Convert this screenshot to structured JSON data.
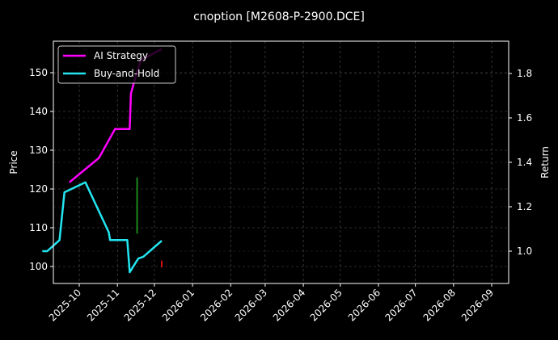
{
  "chart_data": {
    "type": "line",
    "title": "cnoption [M2608-P-2900.DCE]",
    "xlabel": "",
    "ylabel_left": "Price",
    "ylabel_right": "Return",
    "x_ticks": [
      "2025-10",
      "2025-11",
      "2025-12",
      "2026-01",
      "2026-02",
      "2026-03",
      "2026-04",
      "2026-05",
      "2026-06",
      "2026-07",
      "2026-08",
      "2026-09"
    ],
    "y_left_ticks": [
      100,
      110,
      120,
      130,
      140,
      150
    ],
    "y_left_range": [
      95.7,
      158.2
    ],
    "y_right_ticks": [
      1.0,
      1.2,
      1.4,
      1.6,
      1.8
    ],
    "y_right_range": [
      0.85,
      1.94
    ],
    "grid": true,
    "legend_position": "upper left",
    "legend": [
      "AI Strategy",
      "Buy-and-Hold"
    ],
    "series": [
      {
        "name": "AI Strategy",
        "axis": "right",
        "color": "#ff00ff",
        "x": [
          "2025-09-23",
          "2025-10-17",
          "2025-10-30",
          "2025-11-11",
          "2025-11-12",
          "2025-11-15",
          "2025-11-20",
          "2025-12-07"
        ],
        "values": [
          1.31,
          1.42,
          1.55,
          1.55,
          1.71,
          1.77,
          1.86,
          1.91
        ]
      },
      {
        "name": "Buy-and-Hold",
        "axis": "right",
        "color": "#22e5f0",
        "x": [
          "2025-09-01",
          "2025-09-05",
          "2025-09-15",
          "2025-09-19",
          "2025-10-06",
          "2025-10-25",
          "2025-10-26",
          "2025-11-09",
          "2025-11-11",
          "2025-11-16",
          "2025-11-18",
          "2025-11-22",
          "2025-12-07"
        ],
        "values": [
          1.0,
          1.0,
          1.05,
          1.265,
          1.31,
          1.085,
          1.05,
          1.05,
          0.905,
          0.95,
          0.967,
          0.975,
          1.047
        ]
      }
    ],
    "candles": [
      {
        "x": "2025-11-17",
        "low": 108.5,
        "high": 123,
        "color": "#1a8a1a"
      },
      {
        "x": "2025-12-07",
        "low": 99.8,
        "high": 101.5,
        "color": "#d01010"
      }
    ],
    "colors": {
      "background": "#000000",
      "grid": "#555555",
      "axes": "#ffffff"
    }
  }
}
